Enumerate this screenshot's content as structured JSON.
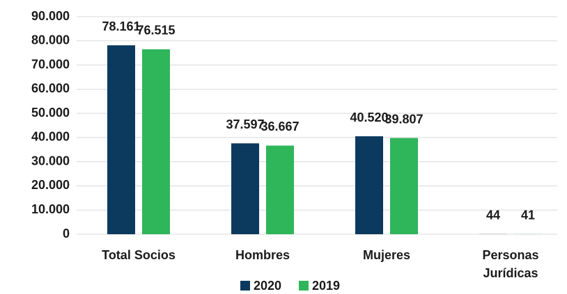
{
  "chart_data": {
    "type": "bar",
    "categories": [
      "Total Socios",
      "Hombres",
      "Mujeres",
      "Personas Jurídicas"
    ],
    "series": [
      {
        "name": "2020",
        "color": "#0b3a5e",
        "values": [
          78161,
          37597,
          40520,
          44
        ],
        "value_labels": [
          "78.161",
          "37.597",
          "40.520",
          "44"
        ]
      },
      {
        "name": "2019",
        "color": "#2fb65a",
        "values": [
          76515,
          36667,
          39807,
          41
        ],
        "value_labels": [
          "76.515",
          "36.667",
          "39.807",
          "41"
        ]
      }
    ],
    "ylim": [
      0,
      90000
    ],
    "yticks": [
      0,
      {
        "value": 10000,
        "label": "10.000"
      },
      {
        "value": 20000,
        "label": "20.000"
      },
      {
        "value": 30000,
        "label": "30.000"
      },
      {
        "value": 40000,
        "label": "40.000"
      },
      {
        "value": 50000,
        "label": "50.000"
      },
      {
        "value": 60000,
        "label": "60.000"
      },
      {
        "value": 70000,
        "label": "70.000"
      },
      {
        "value": 80000,
        "label": "80.000"
      },
      {
        "value": 90000,
        "label": "90.000"
      }
    ],
    "grid": true,
    "legend": "bottom"
  }
}
